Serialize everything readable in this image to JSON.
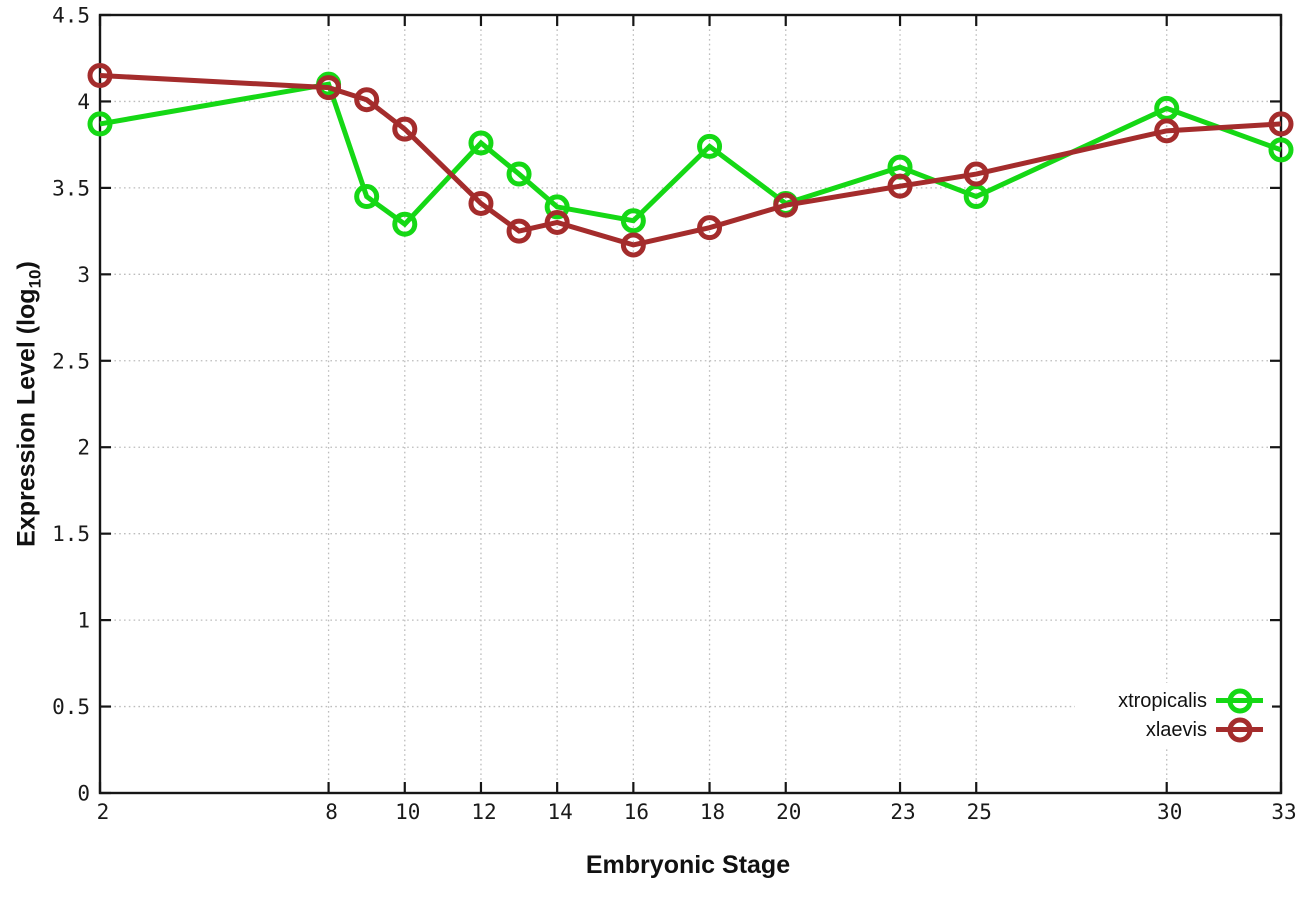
{
  "chart_data": {
    "type": "line",
    "title": "",
    "xlabel": "Embryonic Stage",
    "ylabel": {
      "text": "Expression Level (log",
      "sub": "10",
      "suffix": ")"
    },
    "xlim": [
      2,
      33
    ],
    "ylim": [
      0,
      4.5
    ],
    "grid": true,
    "legend_position": "bottom-right",
    "x": [
      2,
      8,
      9,
      10,
      12,
      13,
      14,
      16,
      18,
      20,
      23,
      25,
      30,
      33
    ],
    "xticks": [
      {
        "label": "2",
        "value": 2
      },
      {
        "label": "8",
        "value": 8
      },
      {
        "label": "10",
        "value": 10
      },
      {
        "label": "12",
        "value": 12
      },
      {
        "label": "14",
        "value": 14
      },
      {
        "label": "16",
        "value": 16
      },
      {
        "label": "18",
        "value": 18
      },
      {
        "label": "20",
        "value": 20
      },
      {
        "label": "23",
        "value": 23
      },
      {
        "label": "25",
        "value": 25
      },
      {
        "label": "30",
        "value": 30
      },
      {
        "label": "33",
        "value": 33
      }
    ],
    "yticks": [
      {
        "label": "0",
        "value": 0
      },
      {
        "label": "0.5",
        "value": 0.5
      },
      {
        "label": "1",
        "value": 1
      },
      {
        "label": "1.5",
        "value": 1.5
      },
      {
        "label": "2",
        "value": 2
      },
      {
        "label": "2.5",
        "value": 2.5
      },
      {
        "label": "3",
        "value": 3
      },
      {
        "label": "3.5",
        "value": 3.5
      },
      {
        "label": "4",
        "value": 4
      },
      {
        "label": "4.5",
        "value": 4.5
      }
    ],
    "series": [
      {
        "name": "xtropicalis",
        "color": "#15d815",
        "marker": "open-circle",
        "values": [
          3.87,
          4.1,
          3.45,
          3.29,
          3.76,
          3.58,
          3.39,
          3.31,
          3.74,
          3.41,
          3.62,
          3.45,
          3.96,
          3.72
        ]
      },
      {
        "name": "xlaevis",
        "color": "#a42c2c",
        "marker": "open-circle",
        "values": [
          4.15,
          4.08,
          4.01,
          3.84,
          3.41,
          3.25,
          3.3,
          3.17,
          3.27,
          3.4,
          3.51,
          3.58,
          3.83,
          3.87
        ]
      }
    ]
  },
  "style": {
    "grid_color": "#bcbcbc",
    "axis_color": "#161616",
    "tick_label_color": "#1a1a1a",
    "background": "#ffffff"
  }
}
